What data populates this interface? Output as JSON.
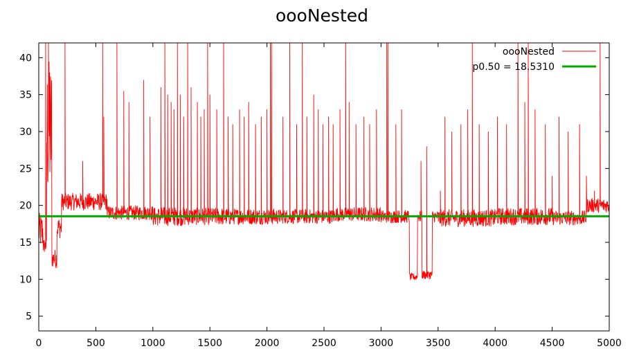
{
  "chart_data": {
    "type": "line",
    "title": "oooNested",
    "xlabel": "",
    "ylabel": "",
    "xlim": [
      0,
      5000
    ],
    "ylim": [
      3,
      42
    ],
    "x_ticks": [
      0,
      500,
      1000,
      1500,
      2000,
      2500,
      3000,
      3500,
      4000,
      4500,
      5000
    ],
    "y_ticks": [
      5,
      10,
      15,
      20,
      25,
      30,
      35,
      40
    ],
    "grid": false,
    "legend_position": "top-right",
    "series": [
      {
        "name": "oooNested",
        "color": "#ff0000",
        "style": "line",
        "n_points": 5000,
        "segments": [
          {
            "x": [
              0,
              40
            ],
            "level": 16.5,
            "noise": 2.5
          },
          {
            "x": [
              40,
              70
            ],
            "level": 14.5,
            "noise": 1.0
          },
          {
            "x": [
              70,
              115
            ],
            "level": 30.0,
            "noise": 10.0
          },
          {
            "x": [
              115,
              160
            ],
            "level": 12.8,
            "noise": 1.3
          },
          {
            "x": [
              160,
              200
            ],
            "level": 17.0,
            "noise": 1.5
          },
          {
            "x": [
              200,
              600
            ],
            "level": 20.5,
            "noise": 1.2
          },
          {
            "x": [
              600,
              1000
            ],
            "level": 19.0,
            "noise": 1.0
          },
          {
            "x": [
              1000,
              1300
            ],
            "level": 18.5,
            "noise": 1.3
          },
          {
            "x": [
              1300,
              1700
            ],
            "level": 18.5,
            "noise": 1.2
          },
          {
            "x": [
              1700,
              2100
            ],
            "level": 18.5,
            "noise": 1.1
          },
          {
            "x": [
              2100,
              2600
            ],
            "level": 18.5,
            "noise": 1.0
          },
          {
            "x": [
              2600,
              3000
            ],
            "level": 18.8,
            "noise": 1.0
          },
          {
            "x": [
              3000,
              3250
            ],
            "level": 18.5,
            "noise": 0.9
          },
          {
            "x": [
              3250,
              3320
            ],
            "level": 10.3,
            "noise": 0.5
          },
          {
            "x": [
              3320,
              3360
            ],
            "level": 18.5,
            "noise": 0.8
          },
          {
            "x": [
              3360,
              3450
            ],
            "level": 10.6,
            "noise": 0.6
          },
          {
            "x": [
              3450,
              3500
            ],
            "level": 18.5,
            "noise": 0.8
          },
          {
            "x": [
              3500,
              4000
            ],
            "level": 18.3,
            "noise": 1.2
          },
          {
            "x": [
              4000,
              4500
            ],
            "level": 18.5,
            "noise": 1.2
          },
          {
            "x": [
              4500,
              4800
            ],
            "level": 18.3,
            "noise": 1.0
          },
          {
            "x": [
              4800,
              5000
            ],
            "level": 20.0,
            "noise": 1.0
          }
        ],
        "spikes": [
          [
            60,
            42
          ],
          [
            85,
            42
          ],
          [
            95,
            38
          ],
          [
            230,
            42
          ],
          [
            385,
            26
          ],
          [
            560,
            42
          ],
          [
            570,
            32
          ],
          [
            685,
            42
          ],
          [
            745,
            35.5
          ],
          [
            790,
            34
          ],
          [
            920,
            37
          ],
          [
            975,
            32
          ],
          [
            1070,
            36
          ],
          [
            1105,
            42
          ],
          [
            1130,
            35
          ],
          [
            1160,
            34
          ],
          [
            1185,
            33
          ],
          [
            1215,
            42
          ],
          [
            1240,
            35
          ],
          [
            1270,
            32
          ],
          [
            1305,
            42
          ],
          [
            1335,
            36
          ],
          [
            1390,
            34
          ],
          [
            1420,
            32
          ],
          [
            1450,
            33
          ],
          [
            1480,
            42
          ],
          [
            1500,
            35
          ],
          [
            1560,
            33
          ],
          [
            1620,
            42
          ],
          [
            1660,
            32
          ],
          [
            1700,
            31
          ],
          [
            1760,
            33
          ],
          [
            1800,
            32
          ],
          [
            1840,
            34
          ],
          [
            1900,
            31
          ],
          [
            1950,
            32
          ],
          [
            2000,
            33
          ],
          [
            2030,
            42
          ],
          [
            2040,
            42
          ],
          [
            2140,
            32
          ],
          [
            2200,
            42
          ],
          [
            2260,
            31
          ],
          [
            2310,
            42
          ],
          [
            2350,
            32
          ],
          [
            2410,
            35
          ],
          [
            2450,
            33
          ],
          [
            2490,
            31
          ],
          [
            2540,
            32
          ],
          [
            2580,
            31
          ],
          [
            2640,
            33
          ],
          [
            2690,
            42
          ],
          [
            2720,
            34
          ],
          [
            2780,
            31
          ],
          [
            2850,
            32
          ],
          [
            2900,
            31
          ],
          [
            2960,
            33
          ],
          [
            3050,
            42
          ],
          [
            3060,
            42
          ],
          [
            3130,
            31
          ],
          [
            3180,
            33
          ],
          [
            3350,
            26
          ],
          [
            3400,
            28
          ],
          [
            3520,
            22
          ],
          [
            3560,
            32
          ],
          [
            3620,
            30
          ],
          [
            3700,
            31
          ],
          [
            3760,
            33
          ],
          [
            3800,
            42
          ],
          [
            3860,
            31
          ],
          [
            3940,
            30
          ],
          [
            4020,
            32
          ],
          [
            4100,
            31
          ],
          [
            4200,
            42
          ],
          [
            4260,
            34
          ],
          [
            4290,
            42
          ],
          [
            4350,
            33
          ],
          [
            4440,
            31
          ],
          [
            4500,
            24
          ],
          [
            4560,
            32
          ],
          [
            4640,
            30
          ],
          [
            4740,
            31
          ],
          [
            4800,
            24
          ],
          [
            4870,
            22
          ],
          [
            4920,
            42
          ]
        ]
      },
      {
        "name": "p0.50 = 18.5310",
        "color": "#00aa00",
        "style": "hline",
        "y": 18.531
      }
    ]
  }
}
